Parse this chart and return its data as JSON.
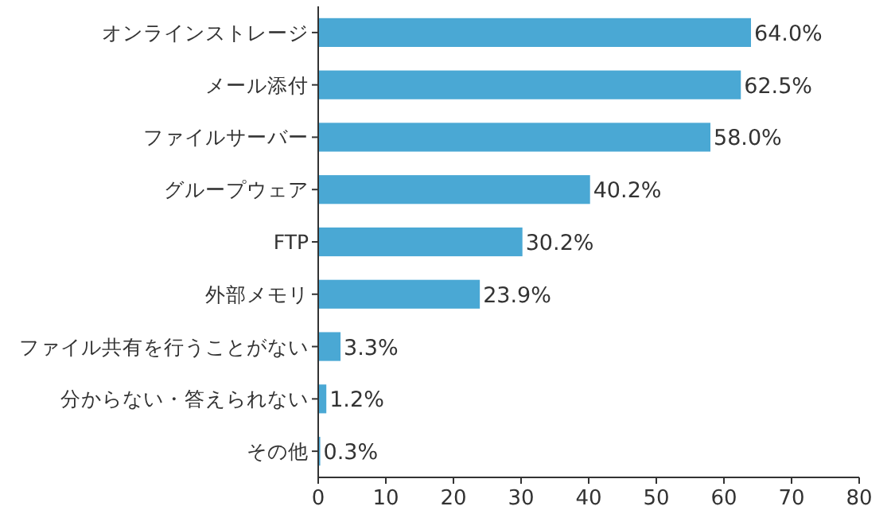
{
  "chart_data": {
    "type": "bar",
    "orientation": "horizontal",
    "categories": [
      "オンラインストレージ",
      "メール添付",
      "ファイルサーバー",
      "グループウェア",
      "FTP",
      "外部メモリ",
      "ファイル共有を行うことがない",
      "分からない・答えられない",
      "その他"
    ],
    "values": [
      64.0,
      62.5,
      58.0,
      40.2,
      30.2,
      23.9,
      3.3,
      1.2,
      0.3
    ],
    "value_labels": [
      "64.0%",
      "62.5%",
      "58.0%",
      "40.2%",
      "30.2%",
      "23.9%",
      "3.3%",
      "1.2%",
      "0.3%"
    ],
    "color": "#4aa8d4",
    "xlim": [
      0,
      80
    ],
    "xticks": [
      0,
      10,
      20,
      30,
      40,
      50,
      60,
      70,
      80
    ],
    "grid": false
  }
}
